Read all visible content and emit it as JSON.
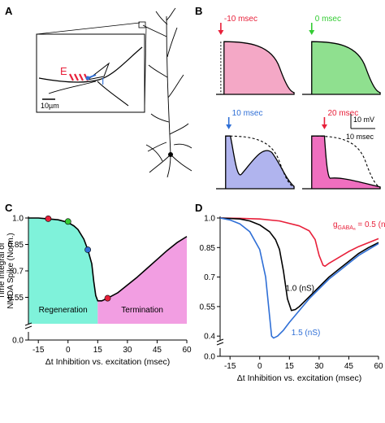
{
  "panels": {
    "A": {
      "letter": "A",
      "labels": {
        "E": "E",
        "I": "I",
        "scale": "10µm"
      },
      "colors": {
        "E": "#e8203a",
        "I": "#2f6fd6"
      }
    },
    "B": {
      "letter": "B",
      "traces": [
        {
          "label": "-10 msec",
          "dt_ms": -10,
          "color": "#e8203a",
          "fill": "#f4a8c6"
        },
        {
          "label": "0 msec",
          "dt_ms": 0,
          "color": "#33cc33",
          "fill": "#8fe08f"
        },
        {
          "label": "10 msec",
          "dt_ms": 10,
          "color": "#2f6fd6",
          "fill": "#b0b4ee"
        },
        {
          "label": "20 msec",
          "dt_ms": 20,
          "color": "#e8203a",
          "fill": "#ef6fbf"
        }
      ],
      "scalebar": {
        "voltage": "10 mV",
        "time": "10 msec"
      }
    }
  },
  "chart_data": [
    {
      "panel": "C",
      "type": "line",
      "title": "",
      "xlabel": "Δt Inhibition vs. excitation (msec)",
      "ylabel": "Time Integral of NMDA Spike (Norm.)",
      "xlim": [
        -20,
        60
      ],
      "ylim": [
        0.4,
        1.0
      ],
      "xticks": [
        -15,
        0,
        15,
        30,
        45,
        60
      ],
      "yticks": [
        0.0,
        0.55,
        0.7,
        0.85,
        1.0
      ],
      "ytick_labels": [
        "0.0",
        "0.55",
        "0.7",
        "0.85",
        "1.0"
      ],
      "axis_break": true,
      "series": [
        {
          "x": [
            -20,
            -15,
            -10,
            -5,
            0,
            3,
            5,
            8,
            10,
            12,
            13,
            14,
            15,
            17,
            20,
            25,
            30,
            35,
            40,
            45,
            50,
            55,
            60
          ],
          "y": [
            1.0,
            1.0,
            0.995,
            0.99,
            0.975,
            0.955,
            0.935,
            0.88,
            0.82,
            0.74,
            0.64,
            0.56,
            0.53,
            0.53,
            0.545,
            0.575,
            0.62,
            0.665,
            0.715,
            0.765,
            0.815,
            0.86,
            0.895
          ],
          "color": "#000000"
        }
      ],
      "markers": [
        {
          "x": -10,
          "y": 0.996,
          "color": "#e8203a"
        },
        {
          "x": 0,
          "y": 0.98,
          "color": "#33cc33"
        },
        {
          "x": 10,
          "y": 0.82,
          "color": "#2f6fd6"
        },
        {
          "x": 20,
          "y": 0.545,
          "color": "#e8203a"
        }
      ],
      "regions": [
        {
          "label": "Regeneration",
          "x0": -20,
          "x1": 15,
          "color": "#7ff2da"
        },
        {
          "label": "Termination",
          "x0": 15,
          "x1": 60,
          "color": "#f29ee2"
        }
      ]
    },
    {
      "panel": "D",
      "type": "line",
      "title": "",
      "xlabel": "Δt Inhibition vs. excitation (msec)",
      "ylabel": "",
      "xlim": [
        -20,
        60
      ],
      "ylim": [
        0.38,
        1.0
      ],
      "xticks": [
        -15,
        0,
        15,
        30,
        45,
        60
      ],
      "yticks": [
        0.0,
        0.4,
        0.55,
        0.7,
        0.85,
        1.0
      ],
      "ytick_labels": [
        "0.0",
        "0.4",
        "0.55",
        "0.7",
        "0.85",
        "1.0"
      ],
      "axis_break": true,
      "series": [
        {
          "name": "0.5 (nS)",
          "x": [
            -20,
            -10,
            0,
            10,
            20,
            25,
            28,
            30,
            32,
            33,
            35,
            40,
            45,
            50,
            55,
            60
          ],
          "y": [
            1.0,
            0.998,
            0.995,
            0.985,
            0.96,
            0.935,
            0.89,
            0.81,
            0.76,
            0.755,
            0.77,
            0.8,
            0.83,
            0.855,
            0.875,
            0.895
          ],
          "color": "#e8203a"
        },
        {
          "name": "1.0 (nS)",
          "x": [
            -20,
            -10,
            -5,
            0,
            5,
            8,
            10,
            12,
            14,
            16,
            18,
            20,
            25,
            30,
            35,
            40,
            45,
            50,
            55,
            60
          ],
          "y": [
            1.0,
            0.995,
            0.985,
            0.965,
            0.93,
            0.89,
            0.84,
            0.73,
            0.59,
            0.53,
            0.535,
            0.55,
            0.6,
            0.65,
            0.7,
            0.74,
            0.78,
            0.82,
            0.85,
            0.875
          ],
          "color": "#000000"
        },
        {
          "name": "1.5 (nS)",
          "x": [
            -20,
            -15,
            -10,
            -5,
            0,
            3,
            5,
            6,
            7,
            9,
            12,
            15,
            20,
            25,
            30,
            35,
            40,
            45,
            50,
            55,
            60
          ],
          "y": [
            1.0,
            0.99,
            0.97,
            0.93,
            0.84,
            0.7,
            0.5,
            0.4,
            0.39,
            0.4,
            0.43,
            0.47,
            0.53,
            0.59,
            0.64,
            0.69,
            0.73,
            0.77,
            0.81,
            0.84,
            0.87
          ],
          "color": "#2f6fd6"
        }
      ],
      "annotations": [
        {
          "text": "g",
          "sub": "GABAₐ",
          "suffix": " = 0.5 (nS)",
          "color": "#e8203a",
          "x": 37,
          "y": 0.955
        },
        {
          "text": "1.0 (nS)",
          "color": "#000000",
          "x": 13,
          "y": 0.63
        },
        {
          "text": "1.5 (nS)",
          "color": "#2f6fd6",
          "x": 16,
          "y": 0.405
        }
      ]
    }
  ]
}
